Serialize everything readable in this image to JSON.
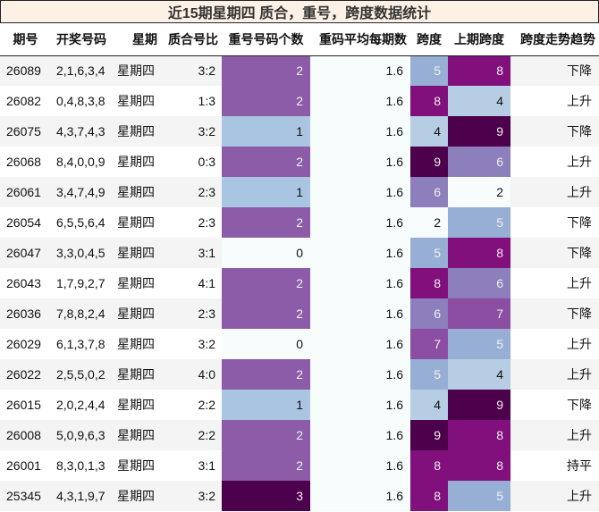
{
  "title": "近15期星期四 质合，重号，跨度数据统计",
  "headers": {
    "issue": "期号",
    "draw": "开奖号码",
    "weekday": "星期",
    "prime_composite_ratio": "质合号比",
    "repeat_count": "重号号码个数",
    "repeat_avg": "重码平均每期数",
    "span": "跨度",
    "prev_span": "上期跨度",
    "span_trend": "跨度走势趋势"
  },
  "colors": {
    "repeat": {
      "0": "#f7fcfd",
      "1": "#a9c5e1",
      "2": "#8c5ca8",
      "3": "#4d004b"
    },
    "span": {
      "2": "#f7fcfd",
      "4": "#b6cde3",
      "5": "#97afd5",
      "6": "#8c7fbb",
      "7": "#8b4ea2",
      "8": "#810f7c",
      "9": "#4d004b"
    }
  },
  "rows": [
    {
      "issue": "26089",
      "draw": "2,1,6,3,4",
      "weekday": "星期四",
      "ratio": "3:2",
      "repeat": "2",
      "avg": "1.6",
      "span": "5",
      "prev_span": "8",
      "trend": "下降"
    },
    {
      "issue": "26082",
      "draw": "0,4,8,3,8",
      "weekday": "星期四",
      "ratio": "1:3",
      "repeat": "2",
      "avg": "1.6",
      "span": "8",
      "prev_span": "4",
      "trend": "上升"
    },
    {
      "issue": "26075",
      "draw": "4,3,7,4,3",
      "weekday": "星期四",
      "ratio": "3:2",
      "repeat": "1",
      "avg": "1.6",
      "span": "4",
      "prev_span": "9",
      "trend": "下降"
    },
    {
      "issue": "26068",
      "draw": "8,4,0,0,9",
      "weekday": "星期四",
      "ratio": "0:3",
      "repeat": "2",
      "avg": "1.6",
      "span": "9",
      "prev_span": "6",
      "trend": "上升"
    },
    {
      "issue": "26061",
      "draw": "3,4,7,4,9",
      "weekday": "星期四",
      "ratio": "2:3",
      "repeat": "1",
      "avg": "1.6",
      "span": "6",
      "prev_span": "2",
      "trend": "上升"
    },
    {
      "issue": "26054",
      "draw": "6,5,5,6,4",
      "weekday": "星期四",
      "ratio": "2:3",
      "repeat": "2",
      "avg": "1.6",
      "span": "2",
      "prev_span": "5",
      "trend": "下降"
    },
    {
      "issue": "26047",
      "draw": "3,3,0,4,5",
      "weekday": "星期四",
      "ratio": "3:1",
      "repeat": "0",
      "avg": "1.6",
      "span": "5",
      "prev_span": "8",
      "trend": "下降"
    },
    {
      "issue": "26043",
      "draw": "1,7,9,2,7",
      "weekday": "星期四",
      "ratio": "4:1",
      "repeat": "2",
      "avg": "1.6",
      "span": "8",
      "prev_span": "6",
      "trend": "上升"
    },
    {
      "issue": "26036",
      "draw": "7,8,8,2,4",
      "weekday": "星期四",
      "ratio": "2:3",
      "repeat": "2",
      "avg": "1.6",
      "span": "6",
      "prev_span": "7",
      "trend": "下降"
    },
    {
      "issue": "26029",
      "draw": "6,1,3,7,8",
      "weekday": "星期四",
      "ratio": "3:2",
      "repeat": "0",
      "avg": "1.6",
      "span": "7",
      "prev_span": "5",
      "trend": "上升"
    },
    {
      "issue": "26022",
      "draw": "2,5,5,0,2",
      "weekday": "星期四",
      "ratio": "4:0",
      "repeat": "2",
      "avg": "1.6",
      "span": "5",
      "prev_span": "4",
      "trend": "上升"
    },
    {
      "issue": "26015",
      "draw": "2,0,2,4,4",
      "weekday": "星期四",
      "ratio": "2:2",
      "repeat": "1",
      "avg": "1.6",
      "span": "4",
      "prev_span": "9",
      "trend": "下降"
    },
    {
      "issue": "26008",
      "draw": "5,0,9,6,3",
      "weekday": "星期四",
      "ratio": "2:2",
      "repeat": "2",
      "avg": "1.6",
      "span": "9",
      "prev_span": "8",
      "trend": "上升"
    },
    {
      "issue": "26001",
      "draw": "8,3,0,1,3",
      "weekday": "星期四",
      "ratio": "3:1",
      "repeat": "2",
      "avg": "1.6",
      "span": "8",
      "prev_span": "8",
      "trend": "持平"
    },
    {
      "issue": "25345",
      "draw": "4,3,1,9,7",
      "weekday": "星期四",
      "ratio": "3:2",
      "repeat": "3",
      "avg": "1.6",
      "span": "8",
      "prev_span": "5",
      "trend": "上升"
    }
  ]
}
